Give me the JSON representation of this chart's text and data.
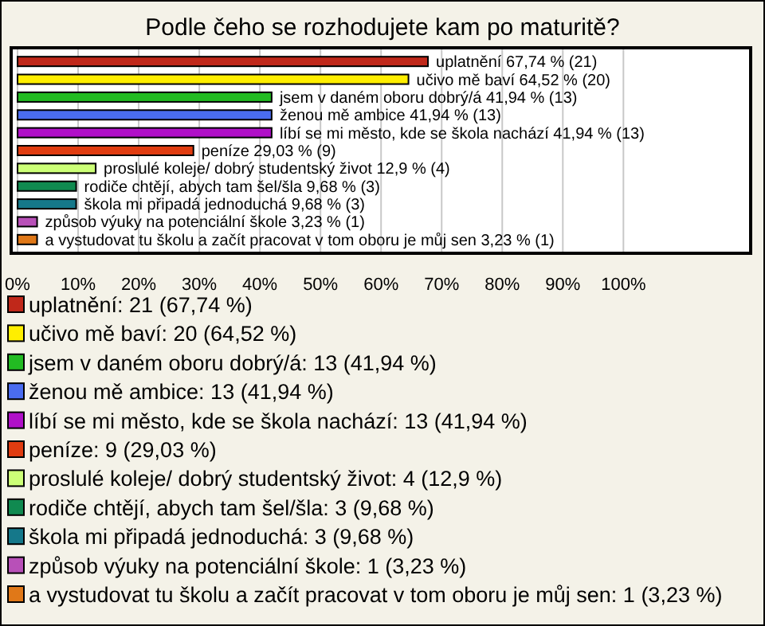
{
  "chart_data": {
    "type": "bar",
    "orientation": "horizontal",
    "title": "Podle čeho se rozhodujete kam po maturitě?",
    "categories": [
      null,
      null,
      null,
      null,
      null,
      null,
      null,
      null,
      null,
      null,
      null
    ],
    "series": [
      {
        "name": "uplatnění: 21 (67,74 %)",
        "color": "#c0281a",
        "values": [
          67.74,
          null,
          null,
          null,
          null,
          null,
          null,
          null,
          null,
          null,
          null
        ],
        "value_labels": [
          "uplatnění 67,74 % (21)",
          null,
          null,
          null,
          null,
          null,
          null,
          null,
          null,
          null,
          null
        ]
      },
      {
        "name": "učivo mě baví: 20 (64,52 %)",
        "color": "#ffee00",
        "values": [
          null,
          64.52,
          null,
          null,
          null,
          null,
          null,
          null,
          null,
          null,
          null
        ],
        "value_labels": [
          null,
          "učivo mě baví 64,52 % (20)",
          null,
          null,
          null,
          null,
          null,
          null,
          null,
          null,
          null
        ]
      },
      {
        "name": "jsem  v daném oboru dobrý/á: 13 (41,94 %)",
        "color": "#22bb22",
        "values": [
          null,
          null,
          41.94,
          null,
          null,
          null,
          null,
          null,
          null,
          null,
          null
        ],
        "value_labels": [
          null,
          null,
          "jsem  v daném oboru dobrý/á 41,94 % (13)",
          null,
          null,
          null,
          null,
          null,
          null,
          null,
          null
        ]
      },
      {
        "name": "ženou mě ambice: 13 (41,94 %)",
        "color": "#4a6cf0",
        "values": [
          null,
          null,
          null,
          41.94,
          null,
          null,
          null,
          null,
          null,
          null,
          null
        ],
        "value_labels": [
          null,
          null,
          null,
          "ženou mě ambice 41,94 % (13)",
          null,
          null,
          null,
          null,
          null,
          null,
          null
        ]
      },
      {
        "name": "líbí se mi město, kde se škola nachází: 13 (41,94 %)",
        "color": "#b010c8",
        "values": [
          null,
          null,
          null,
          null,
          41.94,
          null,
          null,
          null,
          null,
          null,
          null
        ],
        "value_labels": [
          null,
          null,
          null,
          null,
          "líbí se mi město, kde se škola nachází 41,94 % (13)",
          null,
          null,
          null,
          null,
          null,
          null
        ]
      },
      {
        "name": "peníze: 9 (29,03 %)",
        "color": "#e03c10",
        "values": [
          null,
          null,
          null,
          null,
          null,
          29.03,
          null,
          null,
          null,
          null,
          null
        ],
        "value_labels": [
          null,
          null,
          null,
          null,
          null,
          "peníze 29,03 % (9)",
          null,
          null,
          null,
          null,
          null
        ]
      },
      {
        "name": "proslulé koleje/ dobrý studentský život: 4 (12,9 %)",
        "color": "#ccff77",
        "values": [
          null,
          null,
          null,
          null,
          null,
          null,
          12.9,
          null,
          null,
          null,
          null
        ],
        "value_labels": [
          null,
          null,
          null,
          null,
          null,
          null,
          "proslulé koleje/ dobrý studentský život 12,9 % (4)",
          null,
          null,
          null,
          null
        ]
      },
      {
        "name": "rodiče chtějí, abych tam šel/šla: 3 (9,68 %)",
        "color": "#108a50",
        "values": [
          null,
          null,
          null,
          null,
          null,
          null,
          null,
          9.68,
          null,
          null,
          null
        ],
        "value_labels": [
          null,
          null,
          null,
          null,
          null,
          null,
          null,
          "rodiče chtějí, abych tam šel/šla 9,68 % (3)",
          null,
          null,
          null
        ]
      },
      {
        "name": "škola mi připadá jednoduchá: 3 (9,68 %)",
        "color": "#15788a",
        "values": [
          null,
          null,
          null,
          null,
          null,
          null,
          null,
          null,
          9.68,
          null,
          null
        ],
        "value_labels": [
          null,
          null,
          null,
          null,
          null,
          null,
          null,
          null,
          "škola mi připadá jednoduchá 9,68 % (3)",
          null,
          null
        ]
      },
      {
        "name": "způsob výuky na potenciální škole: 1 (3,23 %)",
        "color": "#b850b8",
        "values": [
          null,
          null,
          null,
          null,
          null,
          null,
          null,
          null,
          null,
          3.23,
          null
        ],
        "value_labels": [
          null,
          null,
          null,
          null,
          null,
          null,
          null,
          null,
          null,
          "způsob výuky na potenciální škole 3,23 % (1)",
          null
        ]
      },
      {
        "name": "a vystudovat tu školu a začít pracovat v tom oboru je můj sen: 1 (3,23 %)",
        "color": "#e07818",
        "values": [
          null,
          null,
          null,
          null,
          null,
          null,
          null,
          null,
          null,
          null,
          3.23
        ],
        "value_labels": [
          null,
          null,
          null,
          null,
          null,
          null,
          null,
          null,
          null,
          null,
          "a vystudovat tu školu a začít pracovat v tom oboru je můj sen 3,23 % (1)"
        ]
      }
    ],
    "xlim": [
      0,
      121
    ],
    "xticks": [
      {
        "value": 0,
        "label": "0%"
      },
      {
        "value": 10,
        "label": "10%"
      },
      {
        "value": 20,
        "label": "20%"
      },
      {
        "value": 30,
        "label": "30%"
      },
      {
        "value": 40,
        "label": "40%"
      },
      {
        "value": 50,
        "label": "50%"
      },
      {
        "value": 60,
        "label": "60%"
      },
      {
        "value": 70,
        "label": "70%"
      },
      {
        "value": 80,
        "label": "80%"
      },
      {
        "value": 90,
        "label": "90%"
      },
      {
        "value": 100,
        "label": "100%"
      }
    ],
    "grid": "x",
    "legend": "bottom"
  }
}
